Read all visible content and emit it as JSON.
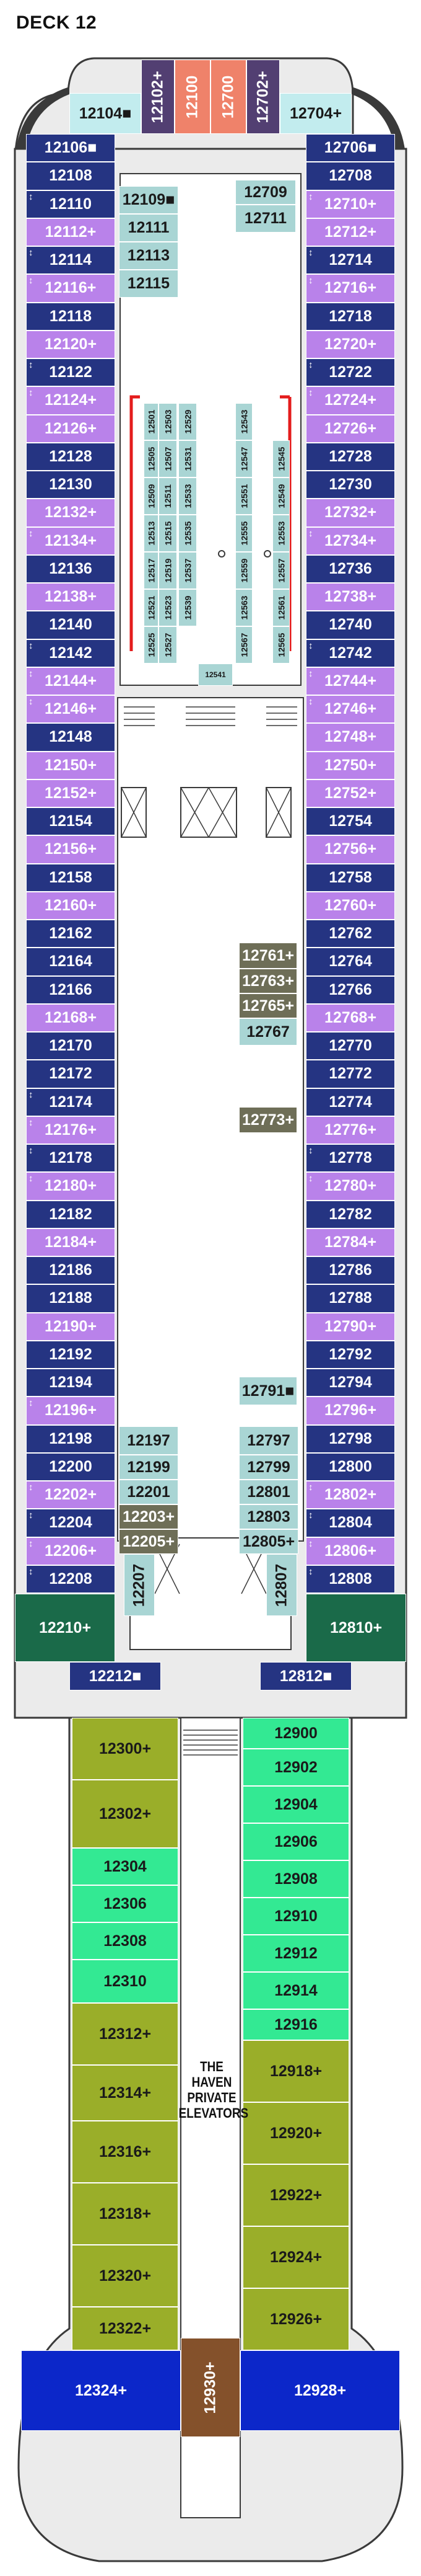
{
  "deck_title": "DECK 12",
  "haven_label": [
    "THE HAVEN",
    "PRIVATE",
    "ELEVATORS"
  ],
  "colors": {
    "hull": "#ebebeb",
    "hull_outline": "#3a3a3a",
    "navy": "#253482",
    "lavender": "#b982ea",
    "aqua": "#c2ecee",
    "purple_dark": "#523f72",
    "salmon": "#ef826a",
    "dark_green": "#1a6a49",
    "teal": "#a9d5d4",
    "olive": "#6e6e57",
    "haven_green": "#9aae29",
    "haven_mint": "#33e993",
    "haven_blue": "#0c27c9",
    "haven_brown": "#84512b",
    "red_marker": "#e41c1c",
    "white": "#ffffff"
  },
  "marks": {
    "access": "■",
    "connect": "+",
    "up": "↕"
  },
  "cabins": [
    {
      "id": "12104",
      "type": "aqua",
      "mark": "access"
    },
    {
      "id": "12102",
      "type": "purple_dark",
      "mark": "connect"
    },
    {
      "id": "12100",
      "type": "salmon"
    },
    {
      "id": "12700",
      "type": "salmon"
    },
    {
      "id": "12702",
      "type": "purple_dark",
      "mark": "connect"
    },
    {
      "id": "12704",
      "type": "aqua",
      "mark": "connect"
    },
    {
      "id": "12106",
      "type": "navy",
      "mark": "access"
    },
    {
      "id": "12108",
      "type": "navy"
    },
    {
      "id": "12110",
      "type": "navy",
      "up": true
    },
    {
      "id": "12112",
      "type": "lavender",
      "mark": "connect"
    },
    {
      "id": "12114",
      "type": "navy",
      "up": true
    },
    {
      "id": "12116",
      "type": "lavender",
      "mark": "connect",
      "up": true
    },
    {
      "id": "12118",
      "type": "navy"
    },
    {
      "id": "12120",
      "type": "lavender",
      "mark": "connect"
    },
    {
      "id": "12122",
      "type": "navy",
      "up": true
    },
    {
      "id": "12124",
      "type": "lavender",
      "mark": "connect",
      "up": true
    },
    {
      "id": "12126",
      "type": "lavender",
      "mark": "connect"
    },
    {
      "id": "12128",
      "type": "navy"
    },
    {
      "id": "12130",
      "type": "navy"
    },
    {
      "id": "12132",
      "type": "lavender",
      "mark": "connect"
    },
    {
      "id": "12134",
      "type": "lavender",
      "mark": "connect",
      "up": true
    },
    {
      "id": "12136",
      "type": "navy"
    },
    {
      "id": "12138",
      "type": "lavender",
      "mark": "connect"
    },
    {
      "id": "12140",
      "type": "navy"
    },
    {
      "id": "12142",
      "type": "navy",
      "up": true
    },
    {
      "id": "12144",
      "type": "lavender",
      "mark": "connect",
      "up": true
    },
    {
      "id": "12146",
      "type": "lavender",
      "mark": "connect",
      "up": true
    },
    {
      "id": "12148",
      "type": "navy"
    },
    {
      "id": "12150",
      "type": "lavender",
      "mark": "connect"
    },
    {
      "id": "12152",
      "type": "lavender",
      "mark": "connect"
    },
    {
      "id": "12154",
      "type": "navy"
    },
    {
      "id": "12156",
      "type": "lavender",
      "mark": "connect"
    },
    {
      "id": "12158",
      "type": "navy"
    },
    {
      "id": "12160",
      "type": "lavender",
      "mark": "connect"
    },
    {
      "id": "12162",
      "type": "navy"
    },
    {
      "id": "12164",
      "type": "navy"
    },
    {
      "id": "12166",
      "type": "navy"
    },
    {
      "id": "12168",
      "type": "lavender",
      "mark": "connect"
    },
    {
      "id": "12170",
      "type": "navy"
    },
    {
      "id": "12172",
      "type": "navy"
    },
    {
      "id": "12174",
      "type": "navy",
      "up": true
    },
    {
      "id": "12176",
      "type": "lavender",
      "mark": "connect",
      "up": true
    },
    {
      "id": "12178",
      "type": "navy",
      "up": true
    },
    {
      "id": "12180",
      "type": "lavender",
      "mark": "connect",
      "up": true
    },
    {
      "id": "12182",
      "type": "navy"
    },
    {
      "id": "12184",
      "type": "lavender",
      "mark": "connect"
    },
    {
      "id": "12186",
      "type": "navy"
    },
    {
      "id": "12188",
      "type": "navy"
    },
    {
      "id": "12190",
      "type": "lavender",
      "mark": "connect"
    },
    {
      "id": "12192",
      "type": "navy"
    },
    {
      "id": "12194",
      "type": "navy"
    },
    {
      "id": "12196",
      "type": "lavender",
      "mark": "connect",
      "up": true
    },
    {
      "id": "12198",
      "type": "navy"
    },
    {
      "id": "12200",
      "type": "navy"
    },
    {
      "id": "12202",
      "type": "lavender",
      "mark": "connect",
      "up": true
    },
    {
      "id": "12204",
      "type": "navy",
      "up": true
    },
    {
      "id": "12206",
      "type": "lavender",
      "mark": "connect",
      "up": true
    },
    {
      "id": "12208",
      "type": "navy",
      "up": true
    },
    {
      "id": "12210",
      "type": "dark_green",
      "mark": "connect"
    },
    {
      "id": "12212",
      "type": "navy",
      "mark": "access"
    },
    {
      "id": "12706",
      "type": "navy",
      "mark": "access"
    },
    {
      "id": "12708",
      "type": "navy"
    },
    {
      "id": "12710",
      "type": "lavender",
      "mark": "connect",
      "up": true
    },
    {
      "id": "12712",
      "type": "lavender",
      "mark": "connect"
    },
    {
      "id": "12714",
      "type": "navy",
      "up": true
    },
    {
      "id": "12716",
      "type": "lavender",
      "mark": "connect",
      "up": true
    },
    {
      "id": "12718",
      "type": "navy"
    },
    {
      "id": "12720",
      "type": "lavender",
      "mark": "connect"
    },
    {
      "id": "12722",
      "type": "navy",
      "up": true
    },
    {
      "id": "12724",
      "type": "lavender",
      "mark": "connect",
      "up": true
    },
    {
      "id": "12726",
      "type": "lavender",
      "mark": "connect"
    },
    {
      "id": "12728",
      "type": "navy"
    },
    {
      "id": "12730",
      "type": "navy"
    },
    {
      "id": "12732",
      "type": "lavender",
      "mark": "connect"
    },
    {
      "id": "12734",
      "type": "lavender",
      "mark": "connect",
      "up": true
    },
    {
      "id": "12736",
      "type": "navy"
    },
    {
      "id": "12738",
      "type": "lavender",
      "mark": "connect"
    },
    {
      "id": "12740",
      "type": "navy"
    },
    {
      "id": "12742",
      "type": "navy",
      "up": true
    },
    {
      "id": "12744",
      "type": "lavender",
      "mark": "connect",
      "up": true
    },
    {
      "id": "12746",
      "type": "lavender",
      "mark": "connect",
      "up": true
    },
    {
      "id": "12748",
      "type": "lavender",
      "mark": "connect"
    },
    {
      "id": "12750",
      "type": "lavender",
      "mark": "connect"
    },
    {
      "id": "12752",
      "type": "lavender",
      "mark": "connect"
    },
    {
      "id": "12754",
      "type": "navy"
    },
    {
      "id": "12756",
      "type": "lavender",
      "mark": "connect"
    },
    {
      "id": "12758",
      "type": "navy"
    },
    {
      "id": "12760",
      "type": "lavender",
      "mark": "connect"
    },
    {
      "id": "12762",
      "type": "navy"
    },
    {
      "id": "12764",
      "type": "navy"
    },
    {
      "id": "12766",
      "type": "navy"
    },
    {
      "id": "12768",
      "type": "lavender",
      "mark": "connect"
    },
    {
      "id": "12770",
      "type": "navy"
    },
    {
      "id": "12772",
      "type": "navy"
    },
    {
      "id": "12774",
      "type": "navy"
    },
    {
      "id": "12776",
      "type": "lavender",
      "mark": "connect"
    },
    {
      "id": "12778",
      "type": "navy",
      "up": true
    },
    {
      "id": "12780",
      "type": "lavender",
      "mark": "connect",
      "up": true
    },
    {
      "id": "12782",
      "type": "navy"
    },
    {
      "id": "12784",
      "type": "lavender",
      "mark": "connect"
    },
    {
      "id": "12786",
      "type": "navy"
    },
    {
      "id": "12788",
      "type": "navy"
    },
    {
      "id": "12790",
      "type": "lavender",
      "mark": "connect"
    },
    {
      "id": "12792",
      "type": "navy"
    },
    {
      "id": "12794",
      "type": "navy"
    },
    {
      "id": "12796",
      "type": "lavender",
      "mark": "connect"
    },
    {
      "id": "12798",
      "type": "navy"
    },
    {
      "id": "12800",
      "type": "navy"
    },
    {
      "id": "12802",
      "type": "lavender",
      "mark": "connect",
      "up": true
    },
    {
      "id": "12804",
      "type": "navy",
      "up": true
    },
    {
      "id": "12806",
      "type": "lavender",
      "mark": "connect",
      "up": true
    },
    {
      "id": "12808",
      "type": "navy",
      "up": true
    },
    {
      "id": "12810",
      "type": "dark_green",
      "mark": "connect"
    },
    {
      "id": "12812",
      "type": "navy",
      "mark": "access"
    },
    {
      "id": "12109",
      "type": "teal",
      "mark": "access"
    },
    {
      "id": "12111",
      "type": "teal"
    },
    {
      "id": "12113",
      "type": "teal"
    },
    {
      "id": "12115",
      "type": "teal"
    },
    {
      "id": "12709",
      "type": "teal"
    },
    {
      "id": "12711",
      "type": "teal"
    },
    {
      "id": "12501",
      "type": "teal"
    },
    {
      "id": "12503",
      "type": "teal"
    },
    {
      "id": "12529",
      "type": "teal"
    },
    {
      "id": "12543",
      "type": "teal"
    },
    {
      "id": "12505",
      "type": "teal"
    },
    {
      "id": "12507",
      "type": "teal"
    },
    {
      "id": "12531",
      "type": "teal"
    },
    {
      "id": "12547",
      "type": "teal"
    },
    {
      "id": "12545",
      "type": "teal"
    },
    {
      "id": "12509",
      "type": "teal"
    },
    {
      "id": "12511",
      "type": "teal"
    },
    {
      "id": "12533",
      "type": "teal"
    },
    {
      "id": "12551",
      "type": "teal"
    },
    {
      "id": "12549",
      "type": "teal"
    },
    {
      "id": "12513",
      "type": "teal"
    },
    {
      "id": "12515",
      "type": "teal"
    },
    {
      "id": "12535",
      "type": "teal"
    },
    {
      "id": "12555",
      "type": "teal"
    },
    {
      "id": "12553",
      "type": "teal"
    },
    {
      "id": "12517",
      "type": "teal"
    },
    {
      "id": "12519",
      "type": "teal"
    },
    {
      "id": "12537",
      "type": "teal"
    },
    {
      "id": "12559",
      "type": "teal"
    },
    {
      "id": "12557",
      "type": "teal"
    },
    {
      "id": "12521",
      "type": "teal"
    },
    {
      "id": "12523",
      "type": "teal"
    },
    {
      "id": "12539",
      "type": "teal"
    },
    {
      "id": "12563",
      "type": "teal"
    },
    {
      "id": "12561",
      "type": "teal"
    },
    {
      "id": "12525",
      "type": "teal"
    },
    {
      "id": "12527",
      "type": "teal"
    },
    {
      "id": "12541",
      "type": "teal"
    },
    {
      "id": "12567",
      "type": "teal"
    },
    {
      "id": "12565",
      "type": "teal"
    },
    {
      "id": "12761",
      "type": "olive",
      "mark": "connect"
    },
    {
      "id": "12763",
      "type": "olive",
      "mark": "connect"
    },
    {
      "id": "12765",
      "type": "olive",
      "mark": "connect"
    },
    {
      "id": "12767",
      "type": "teal"
    },
    {
      "id": "12773",
      "type": "olive",
      "mark": "connect"
    },
    {
      "id": "12791",
      "type": "teal",
      "mark": "access"
    },
    {
      "id": "12197",
      "type": "teal"
    },
    {
      "id": "12199",
      "type": "teal"
    },
    {
      "id": "12201",
      "type": "teal"
    },
    {
      "id": "12203",
      "type": "olive",
      "mark": "connect"
    },
    {
      "id": "12205",
      "type": "olive",
      "mark": "connect"
    },
    {
      "id": "12207",
      "type": "teal"
    },
    {
      "id": "12797",
      "type": "teal"
    },
    {
      "id": "12799",
      "type": "teal"
    },
    {
      "id": "12801",
      "type": "teal"
    },
    {
      "id": "12803",
      "type": "teal"
    },
    {
      "id": "12805",
      "type": "teal",
      "mark": "connect"
    },
    {
      "id": "12807",
      "type": "teal"
    },
    {
      "id": "12300",
      "type": "haven_green",
      "mark": "connect"
    },
    {
      "id": "12302",
      "type": "haven_green",
      "mark": "connect"
    },
    {
      "id": "12304",
      "type": "haven_mint"
    },
    {
      "id": "12306",
      "type": "haven_mint"
    },
    {
      "id": "12308",
      "type": "haven_mint"
    },
    {
      "id": "12310",
      "type": "haven_mint"
    },
    {
      "id": "12312",
      "type": "haven_green",
      "mark": "connect"
    },
    {
      "id": "12314",
      "type": "haven_green",
      "mark": "connect"
    },
    {
      "id": "12316",
      "type": "haven_green",
      "mark": "connect"
    },
    {
      "id": "12318",
      "type": "haven_green",
      "mark": "connect"
    },
    {
      "id": "12320",
      "type": "haven_green",
      "mark": "connect"
    },
    {
      "id": "12322",
      "type": "haven_green",
      "mark": "connect"
    },
    {
      "id": "12324",
      "type": "haven_blue",
      "mark": "connect"
    },
    {
      "id": "12930",
      "type": "haven_brown",
      "mark": "connect"
    },
    {
      "id": "12900",
      "type": "haven_mint"
    },
    {
      "id": "12902",
      "type": "haven_mint"
    },
    {
      "id": "12904",
      "type": "haven_mint"
    },
    {
      "id": "12906",
      "type": "haven_mint"
    },
    {
      "id": "12908",
      "type": "haven_mint"
    },
    {
      "id": "12910",
      "type": "haven_mint"
    },
    {
      "id": "12912",
      "type": "haven_mint"
    },
    {
      "id": "12914",
      "type": "haven_mint"
    },
    {
      "id": "12916",
      "type": "haven_mint"
    },
    {
      "id": "12918",
      "type": "haven_green",
      "mark": "connect"
    },
    {
      "id": "12920",
      "type": "haven_green",
      "mark": "connect"
    },
    {
      "id": "12922",
      "type": "haven_green",
      "mark": "connect"
    },
    {
      "id": "12924",
      "type": "haven_green",
      "mark": "connect"
    },
    {
      "id": "12926",
      "type": "haven_green",
      "mark": "connect"
    },
    {
      "id": "12928",
      "type": "haven_blue",
      "mark": "connect"
    }
  ]
}
